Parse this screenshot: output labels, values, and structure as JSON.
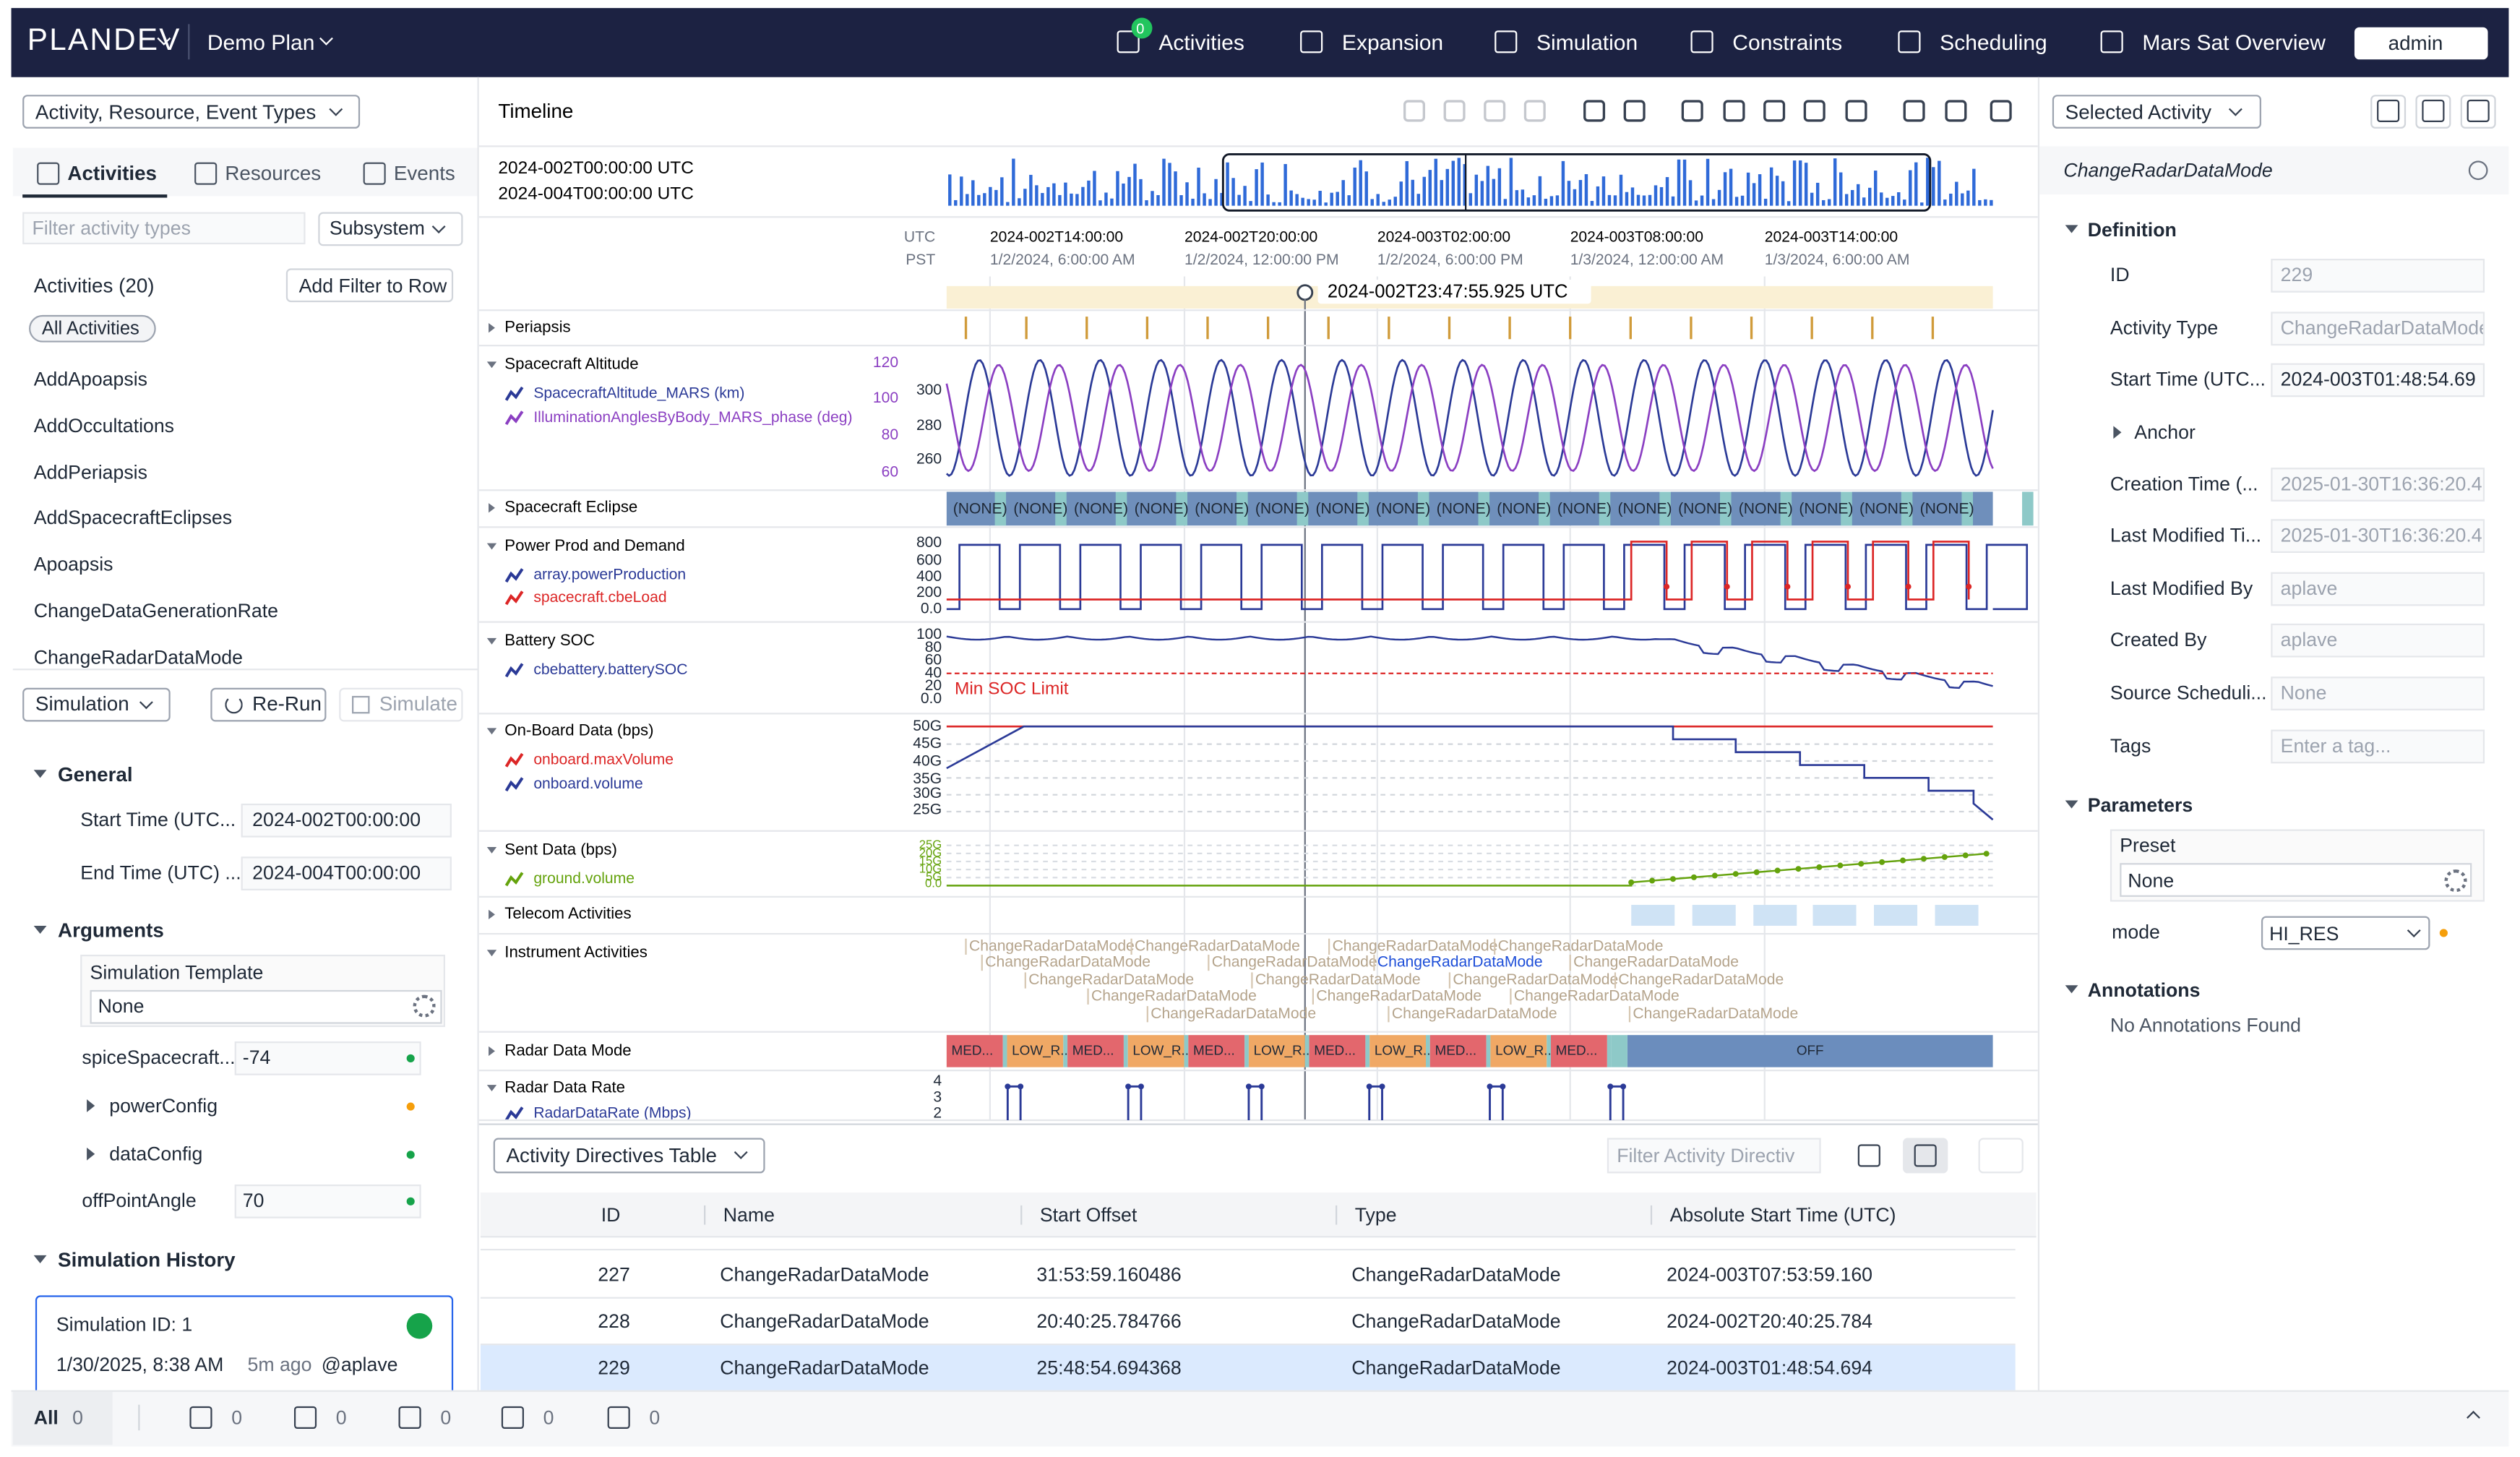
{
  "nav": {
    "brand": "PLANDEV",
    "plan": "Demo Plan",
    "items": [
      "Activities",
      "Expansion",
      "Simulation",
      "Constraints",
      "Scheduling",
      "Mars Sat Overview"
    ],
    "activities_badge": "0",
    "user": "admin"
  },
  "left": {
    "type_selector": "Activity, Resource, Event Types",
    "tabs": [
      "Activities",
      "Resources",
      "Events"
    ],
    "filter_placeholder": "Filter activity types",
    "subsystem": "Subsystem",
    "list_title": "Activities (20)",
    "add_filter": "Add Filter to Row",
    "chip": "All Activities",
    "activities": [
      "AddApoapsis",
      "AddOccultations",
      "AddPeriapsis",
      "AddSpacecraftEclipses",
      "Apoapsis",
      "ChangeDataGenerationRate",
      "ChangeRadarDataMode"
    ]
  },
  "simulation": {
    "selector": "Simulation",
    "rerun": "Re-Run",
    "simulate": "Simulate",
    "general": "General",
    "fields": [
      {
        "label": "Start Time (UTC...",
        "value": "2024-002T00:00:00"
      },
      {
        "label": "End Time (UTC) ...",
        "value": "2024-004T00:00:00"
      }
    ],
    "arguments": "Arguments",
    "template": {
      "label": "Simulation Template",
      "value": "None"
    },
    "args": [
      {
        "label": "spiceSpacecraft...",
        "value": "-74",
        "color": "#16a34a"
      },
      {
        "label": "powerConfig",
        "color": "#f59e0b"
      },
      {
        "label": "dataConfig",
        "color": "#16a34a"
      },
      {
        "label": "offPointAngle",
        "value": "70",
        "color": "#16a34a"
      }
    ],
    "history": "Simulation History",
    "card": {
      "id": "Simulation ID: 1",
      "date": "1/30/2025, 8:38 AM",
      "ago": "5m ago",
      "user": "@aplave"
    }
  },
  "timeline": {
    "title": "Timeline",
    "range": [
      "2024-002T00:00:00 UTC",
      "2024-004T00:00:00 UTC"
    ],
    "zones": [
      "UTC",
      "PST"
    ],
    "ticks": [
      {
        "utc": "2024-002T14:00:00",
        "pst": "1/2/2024, 6:00:00 AM"
      },
      {
        "utc": "2024-002T20:00:00",
        "pst": "1/2/2024, 12:00:00 PM"
      },
      {
        "utc": "2024-003T02:00:00",
        "pst": "1/2/2024, 6:00:00 PM"
      },
      {
        "utc": "2024-003T08:00:00",
        "pst": "1/3/2024, 12:00:00 AM"
      },
      {
        "utc": "2024-003T14:00:00",
        "pst": "1/3/2024, 6:00:00 AM"
      }
    ],
    "cursor": "2024-002T23:47:55.925 UTC",
    "rows": [
      {
        "label": "Periapsis"
      },
      {
        "label": "Spacecraft Altitude",
        "layers": [
          {
            "name": "SpacecraftAltitude_MARS (km)",
            "color": "#2b3a97"
          },
          {
            "name": "IlluminationAnglesByBody_MARS_phase (deg)",
            "color": "#8b3fc2"
          }
        ],
        "axes": [
          {
            "color": "#8b3fc2",
            "labels": [
              "120",
              "100",
              "80",
              "60"
            ]
          },
          {
            "color": "#1f2937",
            "labels": [
              "300",
              "280",
              "260"
            ]
          }
        ]
      },
      {
        "label": "Spacecraft Eclipse"
      },
      {
        "label": "Power Prod and Demand",
        "layers": [
          {
            "name": "array.powerProduction",
            "color": "#2b3a97"
          },
          {
            "name": "spacecraft.cbeLoad",
            "color": "#dc2626"
          }
        ],
        "axes": [
          {
            "color": "#1f2937",
            "labels": [
              "800",
              "600",
              "400",
              "200",
              "0.0"
            ]
          }
        ]
      },
      {
        "label": "Battery SOC",
        "layers": [
          {
            "name": "cbebattery.batterySOC",
            "color": "#2b3a97"
          }
        ],
        "axes": [
          {
            "color": "#1f2937",
            "labels": [
              "100",
              "80",
              "60",
              "40",
              "20",
              "0.0"
            ]
          }
        ]
      },
      {
        "label": "On-Board Data (bps)",
        "layers": [
          {
            "name": "onboard.maxVolume",
            "color": "#dc2626"
          },
          {
            "name": "onboard.volume",
            "color": "#2b3a97"
          }
        ],
        "axes": [
          {
            "color": "#1f2937",
            "labels": [
              "50G",
              "45G",
              "40G",
              "35G",
              "30G",
              "25G"
            ]
          }
        ]
      },
      {
        "label": "Sent Data (bps)",
        "layers": [
          {
            "name": "ground.volume",
            "color": "#65a30d"
          }
        ],
        "axes": [
          {
            "color": "#65a30d",
            "labels": [
              "25G",
              "20G",
              "15G",
              "10G",
              "5G",
              "0.0"
            ]
          }
        ]
      },
      {
        "label": "Telecom Activities"
      },
      {
        "label": "Instrument Activities"
      },
      {
        "label": "Radar Data Mode"
      },
      {
        "label": "Radar Data Rate",
        "layers": [
          {
            "name": "RadarDataRate (Mbps)",
            "color": "#2b3a97"
          }
        ],
        "axes": [
          {
            "color": "#1f2937",
            "labels": [
              "4",
              "3",
              "2"
            ]
          }
        ]
      }
    ],
    "eclipse_label": "(NONE)",
    "min_soc": "Min SOC Limit",
    "instrument_label": "ChangeRadarDataMode",
    "radar_modes": [
      "MED...",
      "LOW_R...",
      "MED...",
      "LOW_R...",
      "MED...",
      "LOW_R...",
      "MED...",
      "LOW_R...",
      "MED...",
      "LOW_R...",
      "MED...",
      "OFF"
    ]
  },
  "table": {
    "selector": "Activity Directives Table",
    "filter_placeholder": "Filter Activity Directiv",
    "columns": [
      "ID",
      "Name",
      "Start Offset",
      "Type",
      "Absolute Start Time (UTC)"
    ],
    "rows": [
      [
        "227",
        "ChangeRadarDataMode",
        "31:53:59.160486",
        "ChangeRadarDataMode",
        "2024-003T07:53:59.160"
      ],
      [
        "228",
        "ChangeRadarDataMode",
        "20:40:25.784766",
        "ChangeRadarDataMode",
        "2024-002T20:40:25.784"
      ],
      [
        "229",
        "ChangeRadarDataMode",
        "25:48:54.694368",
        "ChangeRadarDataMode",
        "2024-003T01:48:54.694"
      ]
    ],
    "selected": 2
  },
  "inspector": {
    "selector": "Selected Activity",
    "name": "ChangeRadarDataMode",
    "definition": "Definition",
    "fields": [
      {
        "label": "ID",
        "value": "229"
      },
      {
        "label": "Activity Type",
        "value": "ChangeRadarDataMode"
      },
      {
        "label": "Start Time (UTC...",
        "value": "2024-003T01:48:54.69"
      },
      {
        "label": "Anchor"
      },
      {
        "label": "Creation Time (...",
        "value": "2025-01-30T16:36:20.4"
      },
      {
        "label": "Last Modified Ti...",
        "value": "2025-01-30T16:36:20.4"
      },
      {
        "label": "Last Modified By",
        "value": "aplave"
      },
      {
        "label": "Created By",
        "value": "aplave"
      },
      {
        "label": "Source Scheduli...",
        "value": "None"
      },
      {
        "label": "Tags",
        "placeholder": "Enter a tag..."
      }
    ],
    "parameters": "Parameters",
    "preset": {
      "label": "Preset",
      "value": "None"
    },
    "mode": {
      "label": "mode",
      "value": "HI_RES"
    },
    "annotations": "Annotations",
    "no_annotations": "No Annotations Found"
  },
  "status": {
    "all": "All",
    "counts": [
      "0",
      "0",
      "0",
      "0",
      "0",
      "0"
    ]
  }
}
